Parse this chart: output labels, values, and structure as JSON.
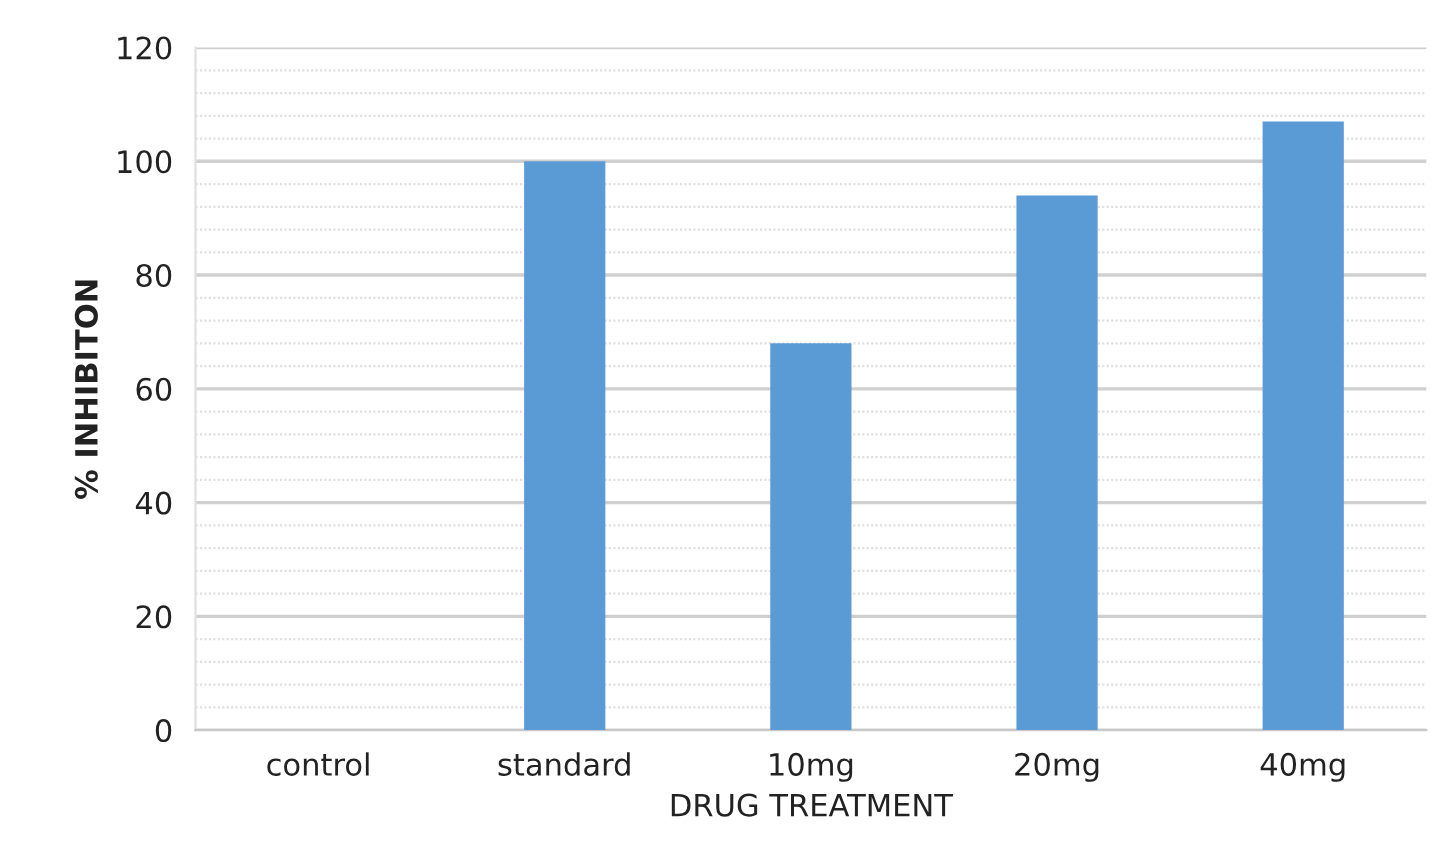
{
  "chart_data": {
    "type": "bar",
    "xlabel": "DRUG TREATMENT",
    "ylabel": "% INHIBITON",
    "categories": [
      "control",
      "standard",
      "10mg",
      "20mg",
      "40mg"
    ],
    "values": [
      0,
      100,
      68,
      94,
      107
    ],
    "color": "#5b9bd5",
    "ylim": [
      0,
      120
    ],
    "yticks": [
      0,
      20,
      40,
      60,
      80,
      100,
      120
    ],
    "grid": "y",
    "legend": false
  }
}
